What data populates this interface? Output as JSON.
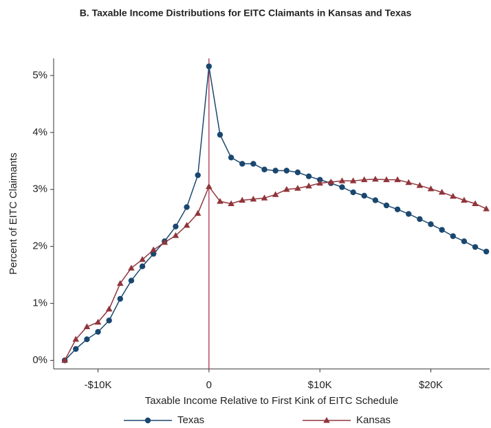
{
  "chart_data": {
    "type": "line",
    "title": "B. Taxable Income Distributions for EITC Claimants in Kansas and Texas",
    "x_label": "Taxable Income Relative to First Kink of EITC Schedule",
    "y_label": "Percent of EITC Claimants",
    "x": [
      -13,
      -12,
      -11,
      -10,
      -9,
      -8,
      -7,
      -6,
      -5,
      -4,
      -3,
      -2,
      -1,
      0,
      1,
      2,
      3,
      4,
      5,
      6,
      7,
      8,
      9,
      10,
      11,
      12,
      13,
      14,
      15,
      16,
      17,
      18,
      19,
      20,
      21,
      22,
      23,
      24,
      25
    ],
    "series": [
      {
        "name": "Texas",
        "color": "#1a476f",
        "marker": "circle",
        "values": [
          0,
          0.2,
          0.37,
          0.5,
          0.7,
          1.08,
          1.4,
          1.65,
          1.87,
          2.09,
          2.35,
          2.69,
          3.25,
          5.16,
          3.96,
          3.56,
          3.45,
          3.45,
          3.35,
          3.33,
          3.33,
          3.3,
          3.23,
          3.17,
          3.11,
          3.04,
          2.95,
          2.89,
          2.81,
          2.72,
          2.65,
          2.57,
          2.48,
          2.39,
          2.29,
          2.18,
          2.09,
          1.99,
          1.91
        ]
      },
      {
        "name": "Kansas",
        "color": "#90353b",
        "marker": "triangle",
        "values": [
          0,
          0.37,
          0.59,
          0.67,
          0.9,
          1.35,
          1.62,
          1.77,
          1.94,
          2.07,
          2.19,
          2.37,
          2.58,
          3.05,
          2.79,
          2.75,
          2.81,
          2.83,
          2.85,
          2.91,
          3.0,
          3.02,
          3.06,
          3.11,
          3.13,
          3.15,
          3.15,
          3.17,
          3.18,
          3.17,
          3.17,
          3.12,
          3.07,
          3.01,
          2.95,
          2.88,
          2.81,
          2.75,
          2.66
        ]
      }
    ],
    "vline": 0,
    "vline_color": "#b03050",
    "xlim": [
      -14,
      25.3
    ],
    "ylim": [
      -0.15,
      5.3
    ],
    "xticks": [
      {
        "value": -10,
        "label": "-$10K"
      },
      0,
      {
        "value": 10,
        "label": "$10K"
      },
      {
        "value": 20,
        "label": "$20K"
      }
    ],
    "yticks": [
      {
        "value": 0,
        "label": "0%"
      },
      {
        "value": 1,
        "label": "1%"
      },
      {
        "value": 2,
        "label": "2%"
      },
      {
        "value": 3,
        "label": "3%"
      },
      {
        "value": 4,
        "label": "4%"
      },
      {
        "value": 5,
        "label": "5%"
      }
    ],
    "grid": false,
    "legend": "bottom"
  }
}
